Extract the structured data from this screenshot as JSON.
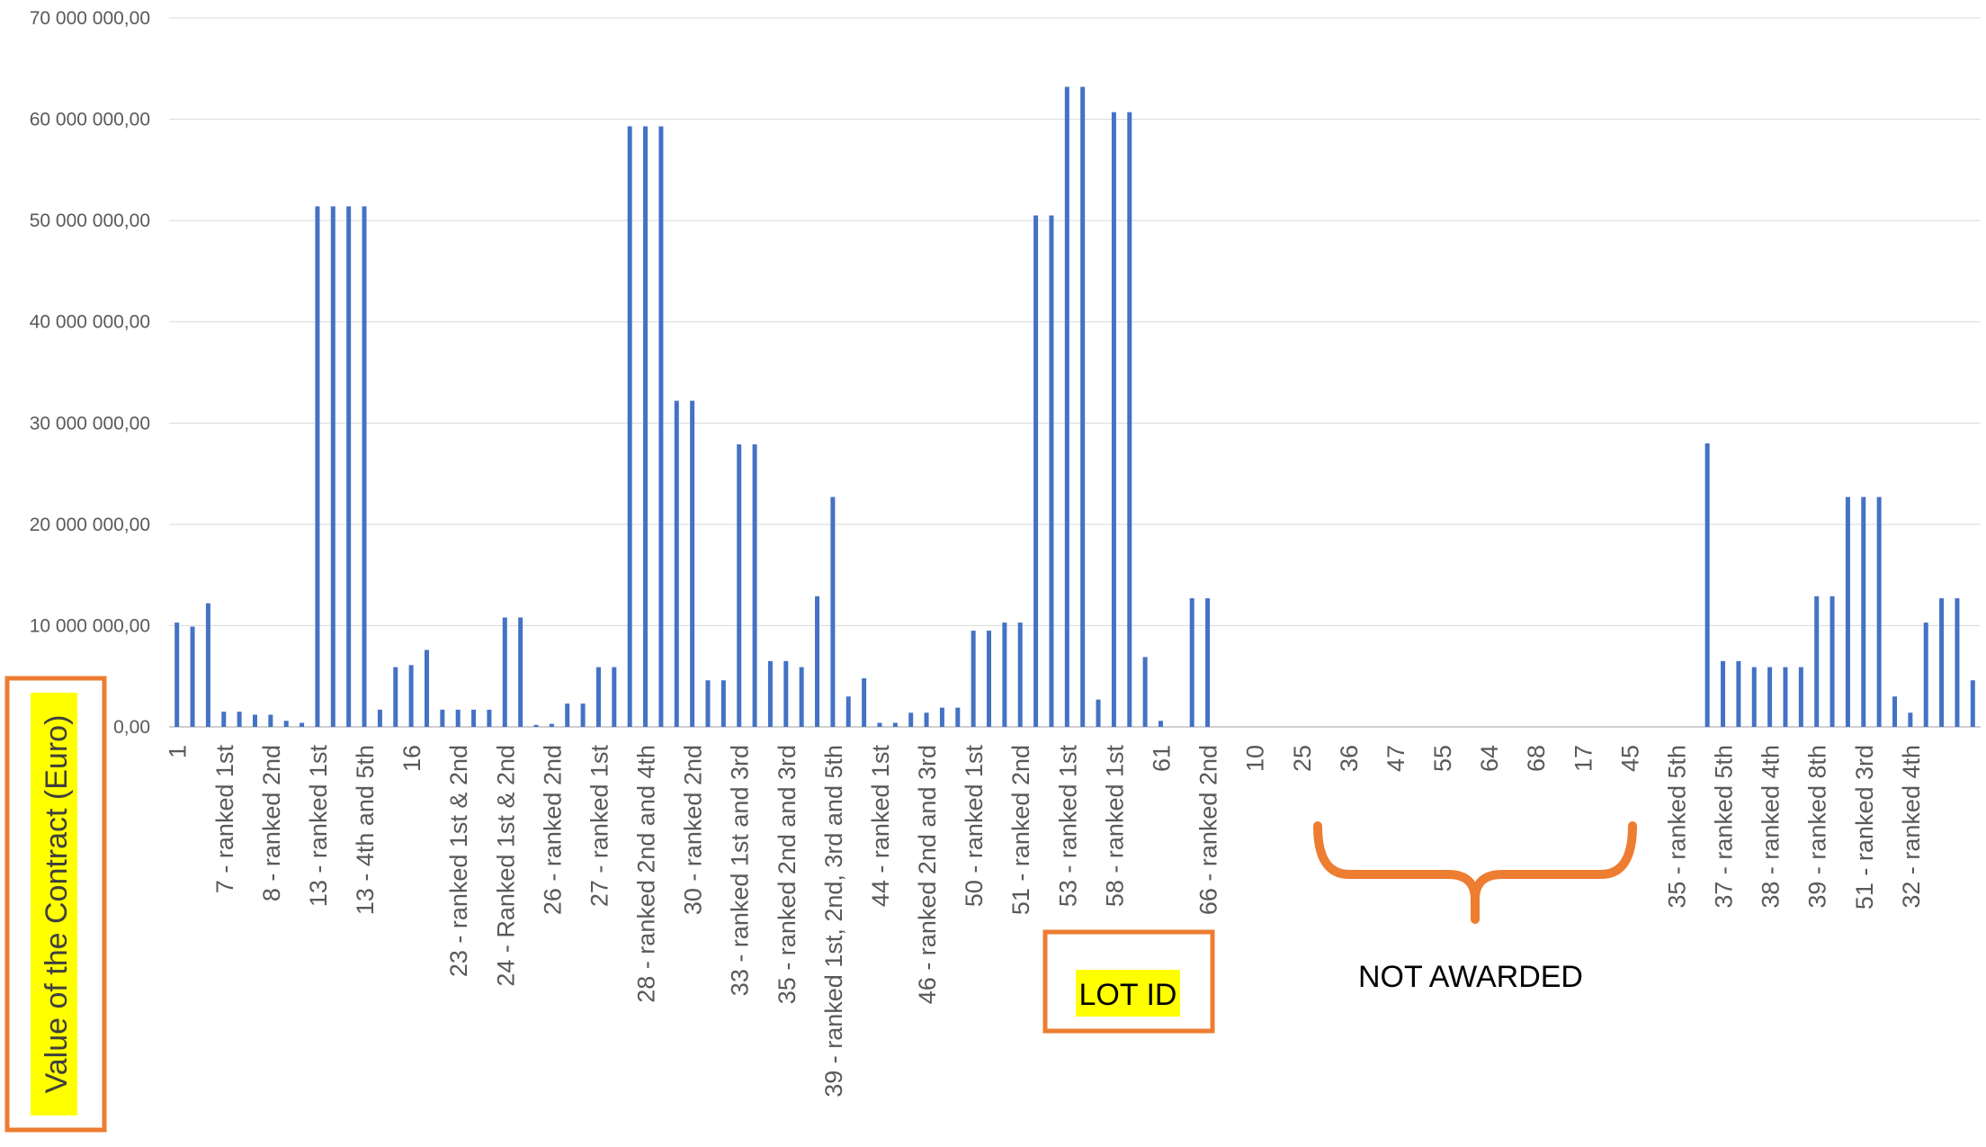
{
  "chart_data": {
    "type": "bar",
    "title": "",
    "xlabel": "LOT ID",
    "ylabel": "Value of the Contract (Euro)",
    "ylim": [
      0,
      70000000
    ],
    "y_ticks": [
      {
        "value": 0,
        "label": "0,00"
      },
      {
        "value": 10000000,
        "label": "10 000 000,00"
      },
      {
        "value": 20000000,
        "label": "20 000 000,00"
      },
      {
        "value": 30000000,
        "label": "30 000 000,00"
      },
      {
        "value": 40000000,
        "label": "40 000 000,00"
      },
      {
        "value": 50000000,
        "label": "50 000 000,00"
      },
      {
        "value": 60000000,
        "label": "60 000 000,00"
      },
      {
        "value": 70000000,
        "label": "70 000 000,00"
      }
    ],
    "grid": true,
    "legend": "none",
    "bar_color": "#4472C4",
    "values": [
      10300000,
      9900000,
      12200000,
      1500000,
      1500000,
      1200000,
      1200000,
      600000,
      400000,
      51400000,
      51400000,
      51400000,
      51400000,
      1700000,
      5900000,
      6100000,
      7600000,
      1700000,
      1700000,
      1700000,
      1700000,
      10800000,
      10800000,
      200000,
      300000,
      2300000,
      2300000,
      5900000,
      5900000,
      59300000,
      59300000,
      59300000,
      32200000,
      32200000,
      4600000,
      4600000,
      27900000,
      27900000,
      6500000,
      6500000,
      5900000,
      12900000,
      22700000,
      3000000,
      4800000,
      400000,
      400000,
      1400000,
      1400000,
      1900000,
      1900000,
      9500000,
      9500000,
      10300000,
      10300000,
      50500000,
      50500000,
      63200000,
      63200000,
      2700000,
      60700000,
      60700000,
      6900000,
      600000,
      0,
      12700000,
      12700000,
      0,
      0,
      0,
      0,
      0,
      0,
      0,
      0,
      0,
      0,
      0,
      0,
      0,
      0,
      0,
      0,
      0,
      0,
      0,
      0,
      0,
      0,
      0,
      0,
      0,
      0,
      0,
      0,
      0,
      0,
      0,
      28000000,
      6500000,
      6500000,
      5900000,
      5900000,
      5900000,
      5900000,
      12900000,
      12900000,
      22700000,
      22700000,
      22700000,
      3000000,
      1400000,
      10300000,
      12700000,
      12700000,
      4600000
    ],
    "x_tick_labels": [
      {
        "index": 0,
        "label": "1"
      },
      {
        "index": 3,
        "label": "7 - ranked 1st"
      },
      {
        "index": 6,
        "label": "8 - ranked 2nd"
      },
      {
        "index": 9,
        "label": "13 - ranked 1st"
      },
      {
        "index": 12,
        "label": "13 - 4th and 5th"
      },
      {
        "index": 15,
        "label": "16"
      },
      {
        "index": 18,
        "label": "23 - ranked 1st & 2nd"
      },
      {
        "index": 21,
        "label": "24 - Ranked 1st & 2nd"
      },
      {
        "index": 24,
        "label": "26 - ranked 2nd"
      },
      {
        "index": 27,
        "label": "27 - ranked 1st"
      },
      {
        "index": 30,
        "label": "28 - ranked 2nd and 4th"
      },
      {
        "index": 33,
        "label": "30 - ranked 2nd"
      },
      {
        "index": 36,
        "label": "33 - ranked 1st and 3rd"
      },
      {
        "index": 39,
        "label": "35 - ranked 2nd and 3rd"
      },
      {
        "index": 42,
        "label": "39 - ranked 1st, 2nd, 3rd and 5th"
      },
      {
        "index": 45,
        "label": "44 - ranked 1st"
      },
      {
        "index": 48,
        "label": "46 - ranked 2nd and 3rd"
      },
      {
        "index": 51,
        "label": "50 - ranked 1st"
      },
      {
        "index": 54,
        "label": "51 - ranked 2nd"
      },
      {
        "index": 57,
        "label": "53 - ranked 1st"
      },
      {
        "index": 60,
        "label": "58 - ranked 1st"
      },
      {
        "index": 63,
        "label": "61"
      },
      {
        "index": 66,
        "label": "66 - ranked 2nd"
      },
      {
        "index": 69,
        "label": "10"
      },
      {
        "index": 72,
        "label": "25"
      },
      {
        "index": 75,
        "label": "36"
      },
      {
        "index": 78,
        "label": "47"
      },
      {
        "index": 81,
        "label": "55"
      },
      {
        "index": 84,
        "label": "64"
      },
      {
        "index": 87,
        "label": "68"
      },
      {
        "index": 90,
        "label": "17"
      },
      {
        "index": 93,
        "label": "45"
      },
      {
        "index": 96,
        "label": "35 - ranked 5th"
      },
      {
        "index": 99,
        "label": "37 - ranked 5th"
      },
      {
        "index": 102,
        "label": "38 - ranked 4th"
      },
      {
        "index": 105,
        "label": "39 - ranked 8th"
      },
      {
        "index": 108,
        "label": "51 - ranked 3rd"
      },
      {
        "index": 111,
        "label": "32 - ranked 4th"
      }
    ],
    "annotations": {
      "bracket_label": "NOT AWARDED",
      "highlight_color": "#FFFF00",
      "box_color": "#ED7D31"
    }
  }
}
